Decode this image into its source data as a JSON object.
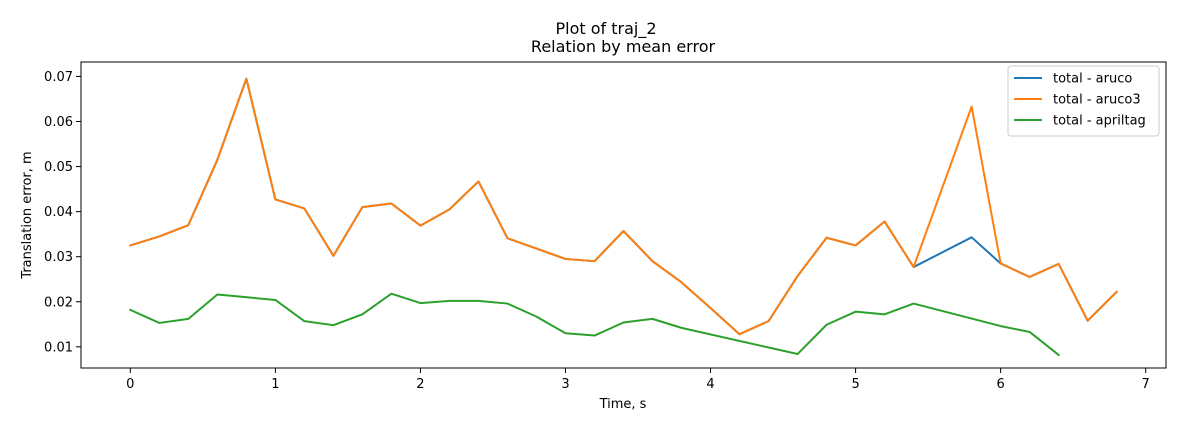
{
  "chart_data": {
    "type": "line",
    "title": "Plot of traj_2",
    "subtitle": "Relation by mean error",
    "xlabel": "Time, s",
    "ylabel": "Translation error, m",
    "xlim": [
      -0.34,
      7.14
    ],
    "ylim": [
      0.0053,
      0.0732
    ],
    "xticks": [
      0,
      1,
      2,
      3,
      4,
      5,
      6,
      7
    ],
    "xtick_labels": [
      "0",
      "1",
      "2",
      "3",
      "4",
      "5",
      "6",
      "7"
    ],
    "yticks": [
      0.01,
      0.02,
      0.03,
      0.04,
      0.05,
      0.06,
      0.07
    ],
    "ytick_labels": [
      "0.01",
      "0.02",
      "0.03",
      "0.04",
      "0.05",
      "0.06",
      "0.07"
    ],
    "grid": false,
    "legend_position": "top-right",
    "series": [
      {
        "name": "total - aruco",
        "color": "#1f77b4",
        "x": [
          0,
          0.2,
          0.4,
          0.6,
          0.8,
          1.0,
          1.2,
          1.4,
          1.6,
          1.8,
          2.0,
          2.2,
          2.4,
          2.6,
          2.8,
          3.0,
          3.2,
          3.4,
          3.6,
          3.8,
          4.0,
          4.2,
          4.4,
          4.6,
          4.8,
          5.0,
          5.2,
          5.4,
          5.8,
          6.0,
          6.2,
          6.4,
          6.6,
          6.8
        ],
        "values": [
          0.0325,
          0.0345,
          0.037,
          0.0515,
          0.0695,
          0.0427,
          0.0407,
          0.0302,
          0.041,
          0.0418,
          0.0369,
          0.0405,
          0.0467,
          0.0341,
          0.0318,
          0.0295,
          0.029,
          0.0357,
          0.029,
          0.0243,
          0.0186,
          0.0128,
          0.0157,
          0.0257,
          0.0342,
          0.0325,
          0.0378,
          0.0277,
          0.0343,
          0.0285,
          0.0255,
          0.0284,
          0.0158,
          0.0222
        ]
      },
      {
        "name": "total - aruco3",
        "color": "#ff7f0e",
        "x": [
          0,
          0.2,
          0.4,
          0.6,
          0.8,
          1.0,
          1.2,
          1.4,
          1.6,
          1.8,
          2.0,
          2.2,
          2.4,
          2.6,
          2.8,
          3.0,
          3.2,
          3.4,
          3.6,
          3.8,
          4.0,
          4.2,
          4.4,
          4.6,
          4.8,
          5.0,
          5.2,
          5.4,
          5.8,
          6.0,
          6.2,
          6.4,
          6.6,
          6.8
        ],
        "values": [
          0.0325,
          0.0345,
          0.037,
          0.0515,
          0.0695,
          0.0427,
          0.0407,
          0.0302,
          0.041,
          0.0418,
          0.0369,
          0.0405,
          0.0467,
          0.0341,
          0.0318,
          0.0295,
          0.029,
          0.0357,
          0.029,
          0.0243,
          0.0186,
          0.0128,
          0.0157,
          0.0257,
          0.0342,
          0.0325,
          0.0378,
          0.0277,
          0.0633,
          0.0285,
          0.0255,
          0.0284,
          0.0158,
          0.0222
        ]
      },
      {
        "name": "total - apriltag",
        "color": "#2ca02c",
        "x": [
          0,
          0.2,
          0.4,
          0.6,
          1.0,
          1.2,
          1.4,
          1.6,
          1.8,
          2.0,
          2.2,
          2.4,
          2.6,
          2.8,
          3.0,
          3.2,
          3.4,
          3.6,
          3.8,
          4.6,
          4.8,
          5.0,
          5.2,
          5.4,
          6.0,
          6.2,
          6.4
        ],
        "values": [
          0.0182,
          0.0153,
          0.0162,
          0.0216,
          0.0204,
          0.0157,
          0.0148,
          0.0172,
          0.0218,
          0.0197,
          0.0202,
          0.0202,
          0.0196,
          0.0167,
          0.013,
          0.0125,
          0.0154,
          0.0162,
          0.0142,
          0.0084,
          0.0149,
          0.0178,
          0.0172,
          0.0196,
          0.0146,
          0.0133,
          0.0082
        ]
      }
    ]
  }
}
